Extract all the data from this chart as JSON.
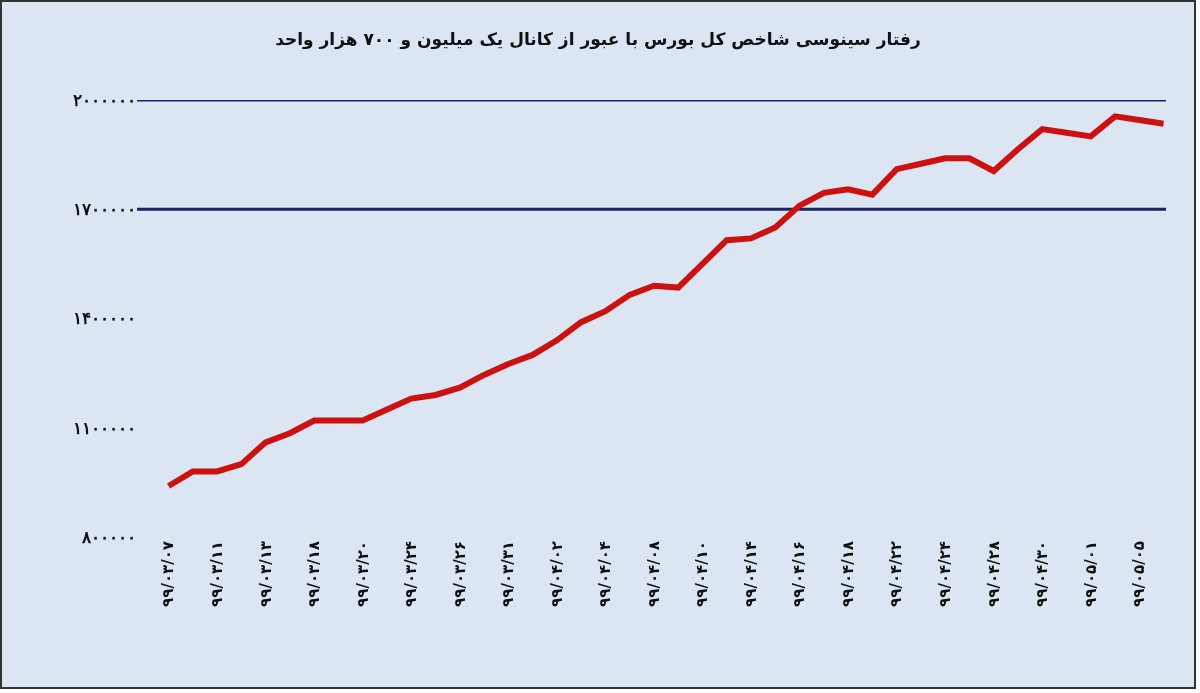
{
  "chart_data": {
    "type": "line",
    "title": "رفتار سینوسی شاخص کل بورس با عبور از کانال یک میلیون و ۷۰۰ هزار واحد",
    "categories": [
      "۹۹/۰۳/۰۷",
      null,
      "۹۹/۰۳/۱۱",
      null,
      "۹۹/۰۳/۱۳",
      null,
      "۹۹/۰۳/۱۸",
      null,
      "۹۹/۰۳/۲۰",
      null,
      "۹۹/۰۳/۲۴",
      null,
      "۹۹/۰۳/۲۶",
      null,
      "۹۹/۰۳/۳۱",
      null,
      "۹۹/۰۴/۰۲",
      null,
      "۹۹/۰۴/۰۴",
      null,
      "۹۹/۰۴/۰۸",
      null,
      "۹۹/۰۴/۱۰",
      null,
      "۹۹/۰۴/۱۴",
      null,
      "۹۹/۰۴/۱۶",
      null,
      "۹۹/۰۴/۱۸",
      null,
      "۹۹/۰۴/۲۲",
      null,
      "۹۹/۰۴/۲۴",
      null,
      "۹۹/۰۴/۲۸",
      null,
      "۹۹/۰۴/۳۰",
      null,
      "۹۹/۰۵/۰۱",
      null,
      "۹۹/۰۵/۰۵",
      null
    ],
    "series": [
      {
        "color": "#cc1111",
        "values": [
          940000,
          980000,
          980000,
          1000000,
          1060000,
          1085000,
          1120000,
          1120000,
          1120000,
          1150000,
          1180000,
          1190000,
          1210000,
          1245000,
          1275000,
          1300000,
          1340000,
          1390000,
          1420000,
          1465000,
          1490000,
          1485000,
          1550000,
          1615000,
          1620000,
          1650000,
          1710000,
          1745000,
          1755000,
          1740000,
          1810000,
          1825000,
          1840000,
          1840000,
          1805000,
          1865000,
          1920000,
          1910000,
          1900000,
          1955000,
          1945000,
          1935000
        ]
      }
    ],
    "ylim": [
      800000,
      2000000
    ],
    "yticks": [
      {
        "value": 800000,
        "label": "۸۰۰۰۰۰"
      },
      {
        "value": 1100000,
        "label": "۱۱۰۰۰۰۰"
      },
      {
        "value": 1400000,
        "label": "۱۴۰۰۰۰۰"
      },
      {
        "value": 1700000,
        "label": "۱۷۰۰۰۰۰"
      },
      {
        "value": 2000000,
        "label": "۲۰۰۰۰۰۰"
      }
    ],
    "ref_lines": [
      {
        "axis": "y",
        "value": 1700000,
        "color": "#1a2363"
      },
      {
        "axis": "y",
        "value": 2000000,
        "color": "#1a2363"
      }
    ],
    "marker": "none",
    "line_style": "solid"
  }
}
